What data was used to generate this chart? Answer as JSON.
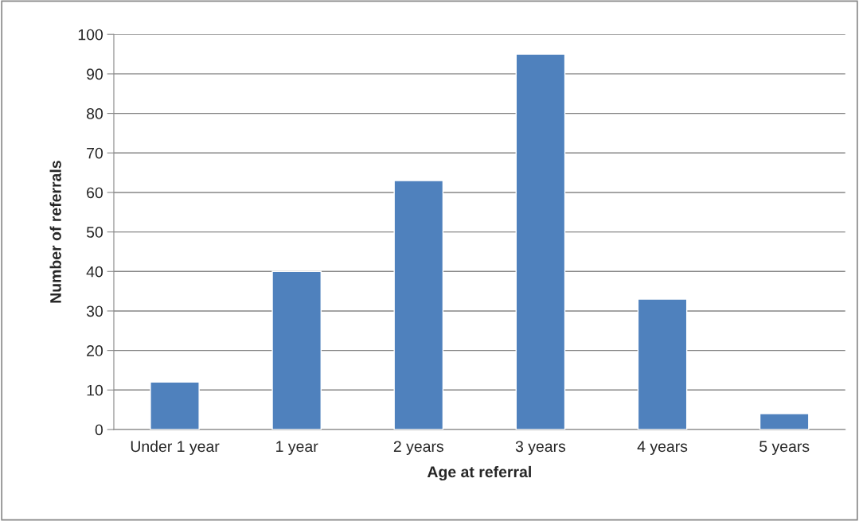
{
  "chart_data": {
    "type": "bar",
    "categories": [
      "Under 1 year",
      "1 year",
      "2 years",
      "3 years",
      "4 years",
      "5 years"
    ],
    "values": [
      12,
      40,
      63,
      95,
      33,
      4
    ],
    "color": "#4f81bd",
    "xlabel": "Age at referral",
    "ylabel": "Number of referrals",
    "ylim": [
      0,
      100
    ],
    "yticks": [
      0,
      10,
      20,
      30,
      40,
      50,
      60,
      70,
      80,
      90,
      100
    ],
    "grid": "y",
    "legend": false
  }
}
